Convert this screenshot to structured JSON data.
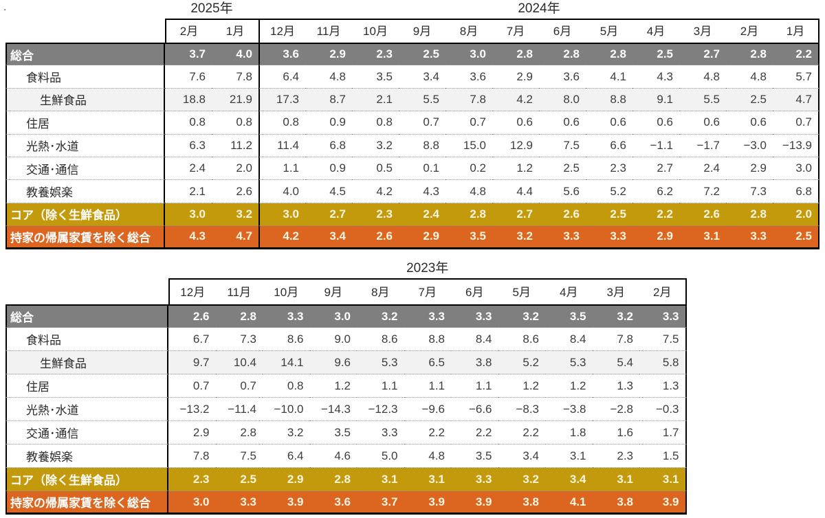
{
  "page": {
    "stray_dot": "."
  },
  "colors": {
    "header_row_gray": "#7f7f7f",
    "subrow_light_gray": "#f2f2f2",
    "core_row_gold": "#c49a0d",
    "ex_imputed_rent_row_orange": "#dc6620",
    "colored_row_number_text": "#fcf5df",
    "value_text": "#3d3d3d",
    "border": "#000000"
  },
  "chart_data": [
    {
      "type": "table",
      "title": "",
      "year_groups": [
        {
          "label": "2025年",
          "months": [
            "2月",
            "1月"
          ]
        },
        {
          "label": "2024年",
          "months": [
            "12月",
            "11月",
            "10月",
            "9月",
            "8月",
            "7月",
            "6月",
            "5月",
            "4月",
            "3月",
            "2月",
            "1月"
          ]
        }
      ],
      "rows": [
        {
          "label": "総合",
          "indent": 0,
          "style": "gray",
          "values": [
            "3.7",
            "4.0",
            "3.6",
            "2.9",
            "2.3",
            "2.5",
            "3.0",
            "2.8",
            "2.8",
            "2.8",
            "2.5",
            "2.7",
            "2.8",
            "2.2"
          ]
        },
        {
          "label": "食料品",
          "indent": 1,
          "style": "white",
          "values": [
            "7.6",
            "7.8",
            "6.4",
            "4.8",
            "3.5",
            "3.4",
            "3.6",
            "2.9",
            "3.6",
            "4.1",
            "4.3",
            "4.8",
            "4.8",
            "5.7"
          ]
        },
        {
          "label": "生鮮食品",
          "indent": 2,
          "style": "light",
          "values": [
            "18.8",
            "21.9",
            "17.3",
            "8.7",
            "2.1",
            "5.5",
            "7.8",
            "4.2",
            "8.0",
            "8.8",
            "9.1",
            "5.5",
            "2.5",
            "4.7"
          ]
        },
        {
          "label": "住居",
          "indent": 1,
          "style": "white",
          "values": [
            "0.8",
            "0.8",
            "0.8",
            "0.9",
            "0.8",
            "0.7",
            "0.7",
            "0.6",
            "0.6",
            "0.6",
            "0.6",
            "0.6",
            "0.6",
            "0.7"
          ]
        },
        {
          "label": "光熱･水道",
          "indent": 1,
          "style": "white",
          "values": [
            "6.3",
            "11.2",
            "11.4",
            "6.8",
            "3.2",
            "8.8",
            "15.0",
            "12.9",
            "7.5",
            "6.6",
            "−1.1",
            "−1.7",
            "−3.0",
            "−13.9"
          ]
        },
        {
          "label": "交通･通信",
          "indent": 1,
          "style": "white",
          "values": [
            "2.4",
            "2.0",
            "1.1",
            "0.9",
            "0.5",
            "0.1",
            "0.2",
            "1.2",
            "2.5",
            "2.3",
            "2.7",
            "2.4",
            "2.9",
            "3.0"
          ]
        },
        {
          "label": "教養娯楽",
          "indent": 1,
          "style": "white",
          "values": [
            "2.1",
            "2.6",
            "4.0",
            "4.5",
            "4.2",
            "4.3",
            "4.8",
            "4.4",
            "5.6",
            "5.2",
            "6.2",
            "7.2",
            "7.3",
            "6.8"
          ]
        },
        {
          "label": "コア（除く生鮮食品）",
          "indent": 0,
          "style": "gold",
          "values": [
            "3.0",
            "3.2",
            "3.0",
            "2.7",
            "2.3",
            "2.4",
            "2.8",
            "2.7",
            "2.6",
            "2.5",
            "2.2",
            "2.6",
            "2.8",
            "2.0"
          ]
        },
        {
          "label": "持家の帰属家賃を除く総合",
          "indent": 0,
          "style": "orange",
          "values": [
            "4.3",
            "4.7",
            "4.2",
            "3.4",
            "2.6",
            "2.9",
            "3.5",
            "3.2",
            "3.3",
            "3.3",
            "2.9",
            "3.1",
            "3.3",
            "2.5"
          ]
        }
      ]
    },
    {
      "type": "table",
      "title": "",
      "year_groups": [
        {
          "label": "2023年",
          "months": [
            "12月",
            "11月",
            "10月",
            "9月",
            "8月",
            "7月",
            "6月",
            "5月",
            "4月",
            "3月",
            "2月"
          ]
        }
      ],
      "rows": [
        {
          "label": "総合",
          "indent": 0,
          "style": "gray",
          "values": [
            "2.6",
            "2.8",
            "3.3",
            "3.0",
            "3.2",
            "3.3",
            "3.3",
            "3.2",
            "3.5",
            "3.2",
            "3.3"
          ]
        },
        {
          "label": "食料品",
          "indent": 1,
          "style": "white",
          "values": [
            "6.7",
            "7.3",
            "8.6",
            "9.0",
            "8.6",
            "8.8",
            "8.4",
            "8.6",
            "8.4",
            "7.8",
            "7.5"
          ]
        },
        {
          "label": "生鮮食品",
          "indent": 2,
          "style": "light",
          "values": [
            "9.7",
            "10.4",
            "14.1",
            "9.6",
            "5.3",
            "6.5",
            "3.8",
            "5.2",
            "5.3",
            "5.4",
            "5.8"
          ]
        },
        {
          "label": "住居",
          "indent": 1,
          "style": "white",
          "values": [
            "0.7",
            "0.7",
            "0.8",
            "1.2",
            "1.1",
            "1.1",
            "1.1",
            "1.2",
            "1.2",
            "1.3",
            "1.3"
          ]
        },
        {
          "label": "光熱･水道",
          "indent": 1,
          "style": "white",
          "values": [
            "−13.2",
            "−11.4",
            "−10.0",
            "−14.3",
            "−12.3",
            "−9.6",
            "−6.6",
            "−8.3",
            "−3.8",
            "−2.8",
            "−0.3"
          ]
        },
        {
          "label": "交通･通信",
          "indent": 1,
          "style": "white",
          "values": [
            "2.9",
            "2.8",
            "3.2",
            "3.5",
            "3.3",
            "2.2",
            "2.2",
            "2.2",
            "1.8",
            "1.6",
            "1.7"
          ]
        },
        {
          "label": "教養娯楽",
          "indent": 1,
          "style": "white",
          "values": [
            "7.8",
            "7.5",
            "6.4",
            "4.6",
            "5.0",
            "4.8",
            "3.5",
            "3.4",
            "3.1",
            "2.3",
            "1.5"
          ]
        },
        {
          "label": "コア（除く生鮮食品）",
          "indent": 0,
          "style": "gold",
          "values": [
            "2.3",
            "2.5",
            "2.9",
            "2.8",
            "3.1",
            "3.1",
            "3.3",
            "3.2",
            "3.4",
            "3.1",
            "3.1"
          ]
        },
        {
          "label": "持家の帰属家賃を除く総合",
          "indent": 0,
          "style": "orange",
          "values": [
            "3.0",
            "3.3",
            "3.9",
            "3.6",
            "3.7",
            "3.9",
            "3.9",
            "3.8",
            "4.1",
            "3.8",
            "3.9"
          ]
        }
      ]
    }
  ]
}
